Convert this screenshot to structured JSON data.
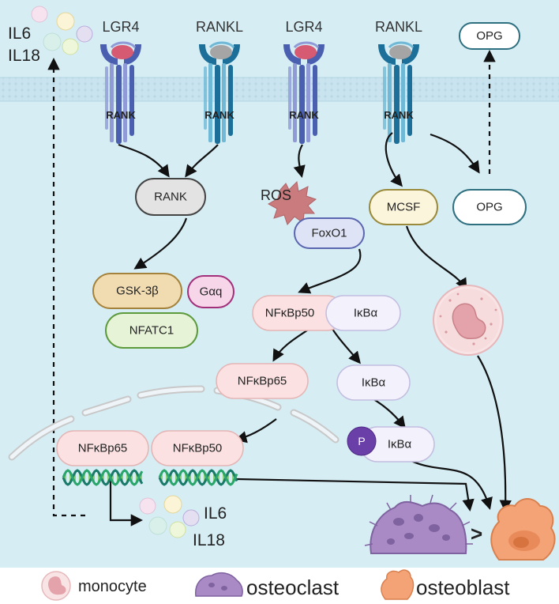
{
  "top_cytokines": [
    "IL6",
    "IL18"
  ],
  "receptors": [
    {
      "ligand": "LGR4",
      "receptor": "RANK"
    },
    {
      "ligand": "RANKL",
      "receptor": "RANK"
    },
    {
      "ligand": "LGR4",
      "receptor": "RANK"
    },
    {
      "ligand": "RANKL",
      "receptor": "RANK"
    }
  ],
  "nodes": {
    "opg_top": "OPG",
    "opg_mid": "OPG",
    "rank": "RANK",
    "ros": "ROS",
    "foxo1": "FoxO1",
    "mcsf": "MCSF",
    "gsk3b": "GSK-3β",
    "gaq": "Gαq",
    "nfatc1": "NFATC1",
    "nfkbp50_top": "NFκBp50",
    "ikba_top": "IκBα",
    "nfkbp65_mid": "NFκBp65",
    "ikba_mid": "IκBα",
    "phospho": "P",
    "ikba_low": "IκBα",
    "nfkbp65_nuc": "NFκBp65",
    "nfkbp50_nuc": "NFκBp50"
  },
  "bottom_cytokines": [
    "IL6",
    "IL18"
  ],
  "comparison_sign": ">",
  "legend": {
    "monocyte": "monocyte",
    "osteoclast": "osteoclast",
    "osteoblast": "osteoblast"
  },
  "colors": {
    "background": "#d6edf4",
    "membrane": "#c9e4ee",
    "lgr4_receptor": "#4a5fb0",
    "rankl_receptor": "#1b6f99",
    "osteoclast": "#a98ac4",
    "osteoblast": "#f4a377",
    "monocyte": "#f3d2d4"
  }
}
